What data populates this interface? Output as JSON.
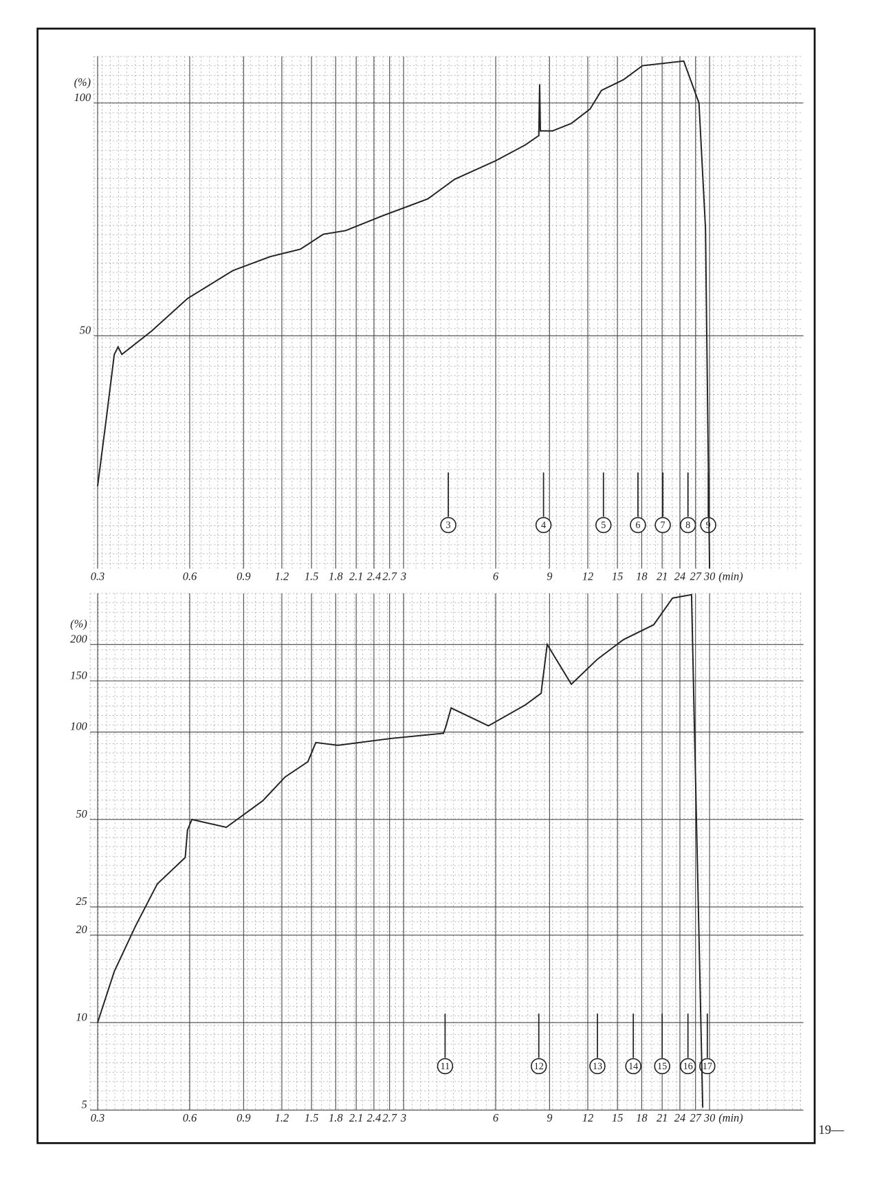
{
  "page_number": "19—",
  "chart_data": [
    {
      "type": "line",
      "y_label": "(%)",
      "x_label": "(min)",
      "log_x": true,
      "log_y": false,
      "grid": true,
      "xlim": [
        0.3,
        30
      ],
      "xticks": [
        0.3,
        0.6,
        0.9,
        1.2,
        1.5,
        1.8,
        2.1,
        2.4,
        2.7,
        3,
        6,
        9,
        12,
        15,
        18,
        21,
        24,
        27,
        30
      ],
      "ylim": [
        0,
        110
      ],
      "yticks": [
        50,
        100
      ],
      "x": [
        0.3,
        0.32,
        0.34,
        0.35,
        0.36,
        0.45,
        0.59,
        0.83,
        1.1,
        1.38,
        1.64,
        1.94,
        2.57,
        3.6,
        4.4,
        6.0,
        7.5,
        8.3,
        8.35,
        8.4,
        9.2,
        10.6,
        12.2,
        13.3,
        15.7,
        18.1,
        24.7,
        27.7,
        29.1,
        30
      ],
      "series": [
        {
          "color": "#222222",
          "values": [
            17.7,
            32,
            46,
            47.6,
            46,
            51,
            58,
            64,
            67,
            68.6,
            71.8,
            72.6,
            75.8,
            79.4,
            83.6,
            87.6,
            91,
            93,
            104,
            94,
            94,
            95.6,
            98.7,
            102.7,
            105,
            108,
            109,
            100,
            73,
            0
          ]
        }
      ],
      "annotations": [
        {
          "x": 4.2,
          "label": "3"
        },
        {
          "x": 8.6,
          "label": "4"
        },
        {
          "x": 13.5,
          "label": "5"
        },
        {
          "x": 17.5,
          "label": "6"
        },
        {
          "x": 21.1,
          "label": "7"
        },
        {
          "x": 25.5,
          "label": "8"
        },
        {
          "x": 29.7,
          "label": "9"
        }
      ]
    },
    {
      "type": "line",
      "y_label": "(%)",
      "x_label": "(min)",
      "log_x": true,
      "log_y": true,
      "grid": true,
      "xlim": [
        0.3,
        30
      ],
      "xticks": [
        0.3,
        0.6,
        0.9,
        1.2,
        1.5,
        1.8,
        2.1,
        2.4,
        2.7,
        3,
        6,
        9,
        12,
        15,
        18,
        21,
        24,
        27,
        30
      ],
      "ylim": [
        5,
        300
      ],
      "yticks": [
        5,
        10,
        20,
        25,
        50,
        100,
        150,
        200
      ],
      "x": [
        0.3,
        0.34,
        0.4,
        0.47,
        0.58,
        0.59,
        0.61,
        0.79,
        1.04,
        1.23,
        1.46,
        1.55,
        1.83,
        2.72,
        4.05,
        4.12,
        4.29,
        5.68,
        7.5,
        8.45,
        8.5,
        8.84,
        10.6,
        12.9,
        15.7,
        19.7,
        22.7,
        26.2,
        28.5
      ],
      "series": [
        {
          "color": "#222222",
          "values": [
            10,
            15,
            21.6,
            30,
            37,
            46,
            50,
            47,
            58,
            70,
            79,
            92,
            90,
            95,
            99,
            104,
            121,
            105,
            124,
            136,
            144,
            200,
            146,
            178,
            208,
            234,
            289,
            297,
            5.1
          ]
        }
      ],
      "annotations": [
        {
          "x": 4.1,
          "label": "11"
        },
        {
          "x": 8.3,
          "label": "12"
        },
        {
          "x": 12.9,
          "label": "13"
        },
        {
          "x": 16.9,
          "label": "14"
        },
        {
          "x": 21,
          "label": "15"
        },
        {
          "x": 25.5,
          "label": "16"
        },
        {
          "x": 29.5,
          "label": "17"
        }
      ]
    }
  ]
}
